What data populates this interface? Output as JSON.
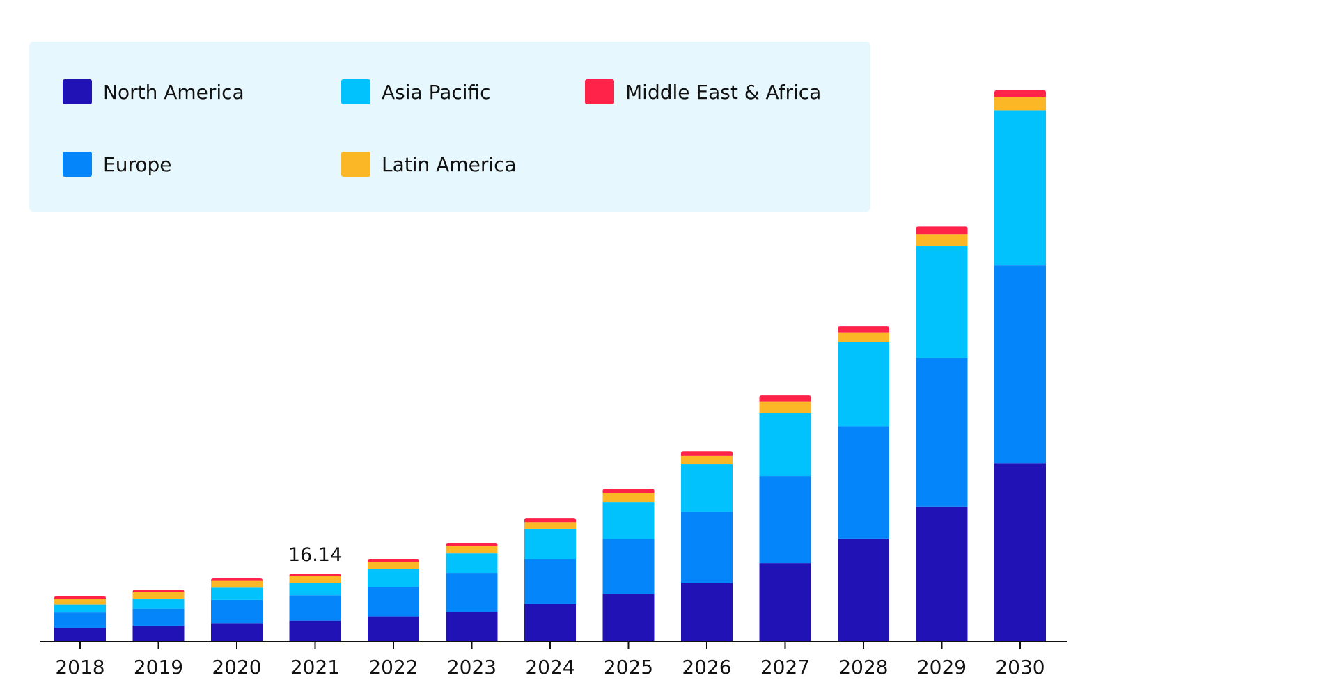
{
  "chart_data": {
    "type": "bar",
    "stacked": true,
    "title": "",
    "xlabel": "",
    "ylabel": "",
    "categories": [
      "2018",
      "2019",
      "2020",
      "2021",
      "2022",
      "2023",
      "2024",
      "2025",
      "2026",
      "2027",
      "2028",
      "2029",
      "2030"
    ],
    "ylim": [
      0,
      130
    ],
    "grid": false,
    "legend_position": "top-left",
    "series": [
      {
        "name": "North America",
        "color": "#2012b5",
        "values": [
          3.3,
          3.8,
          4.4,
          5.0,
          6.0,
          7.0,
          8.9,
          11.3,
          14.0,
          18.6,
          24.4,
          32.0,
          42.3
        ]
      },
      {
        "name": "Europe",
        "color": "#0585fa",
        "values": [
          3.6,
          4.0,
          5.5,
          6.0,
          7.0,
          9.3,
          10.7,
          13.0,
          16.7,
          20.6,
          26.6,
          35.1,
          46.8
        ]
      },
      {
        "name": "Asia Pacific",
        "color": "#01c2fd",
        "values": [
          1.9,
          2.4,
          2.9,
          3.0,
          4.3,
          4.6,
          7.1,
          8.8,
          11.3,
          14.9,
          19.9,
          26.6,
          36.7
        ]
      },
      {
        "name": "Latin America",
        "color": "#fcb727",
        "values": [
          1.4,
          1.5,
          1.6,
          1.5,
          1.6,
          1.7,
          1.6,
          2.0,
          2.0,
          2.8,
          2.3,
          2.8,
          3.2
        ]
      },
      {
        "name": "Middle East & Africa",
        "color": "#ff2249",
        "values": [
          0.6,
          0.6,
          0.6,
          0.64,
          0.7,
          0.8,
          1.0,
          1.1,
          1.1,
          1.4,
          1.4,
          1.8,
          1.5
        ]
      }
    ],
    "annotations": [
      {
        "category": "2021",
        "text": "16.14"
      }
    ]
  },
  "legend": {
    "items": [
      {
        "label": "North America",
        "color": "#2012b5"
      },
      {
        "label": "Asia Pacific",
        "color": "#01c2fd"
      },
      {
        "label": "Middle East & Africa",
        "color": "#ff2249"
      },
      {
        "label": "Europe",
        "color": "#0585fa"
      },
      {
        "label": "Latin America",
        "color": "#fcb727"
      }
    ]
  }
}
